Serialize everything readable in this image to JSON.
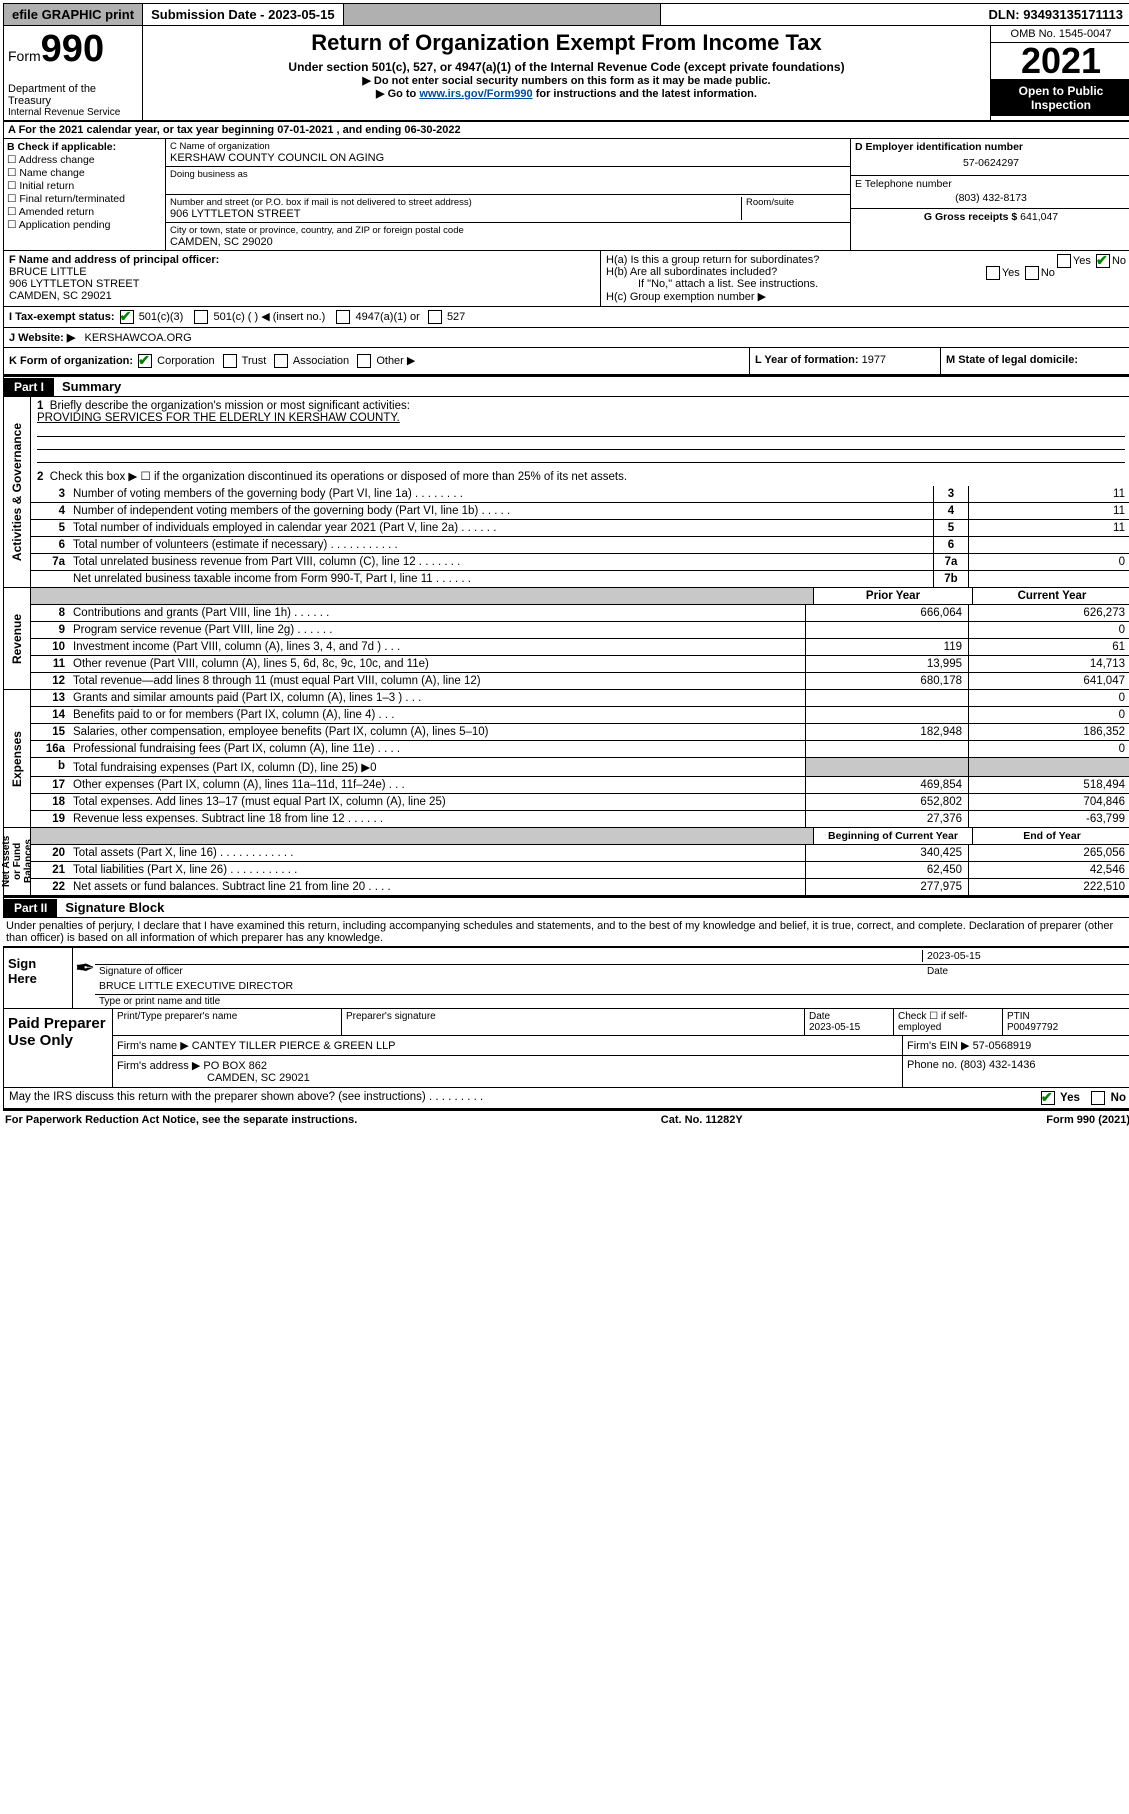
{
  "topbar": {
    "efile": "efile GRAPHIC print",
    "submission_label": "Submission Date - 2023-05-15",
    "dln_label": "DLN: 93493135171113"
  },
  "header": {
    "form_word": "Form",
    "form_num": "990",
    "dept": "Department of the Treasury",
    "irs": "Internal Revenue Service",
    "title": "Return of Organization Exempt From Income Tax",
    "sub1": "Under section 501(c), 527, or 4947(a)(1) of the Internal Revenue Code (except private foundations)",
    "sub2a": "▶ Do not enter social security numbers on this form as it may be made public.",
    "sub2b_pre": "▶ Go to ",
    "sub2b_link": "www.irs.gov/Form990",
    "sub2b_post": " for instructions and the latest information.",
    "omb": "OMB No. 1545-0047",
    "year": "2021",
    "open": "Open to Public Inspection"
  },
  "lineA": "A For the 2021 calendar year, or tax year beginning 07-01-2021     , and ending 06-30-2022",
  "B": {
    "label": "B Check if applicable:",
    "items": [
      "Address change",
      "Name change",
      "Initial return",
      "Final return/terminated",
      "Amended return",
      "Application pending"
    ]
  },
  "C": {
    "name_lab": "C Name of organization",
    "name": "KERSHAW COUNTY COUNCIL ON AGING",
    "dba_lab": "Doing business as",
    "addr_lab": "Number and street (or P.O. box if mail is not delivered to street address)",
    "room_lab": "Room/suite",
    "addr": "906 LYTTLETON STREET",
    "city_lab": "City or town, state or province, country, and ZIP or foreign postal code",
    "city": "CAMDEN, SC  29020"
  },
  "D": {
    "lab": "D Employer identification number",
    "val": "57-0624297"
  },
  "E": {
    "lab": "E Telephone number",
    "val": "(803) 432-8173"
  },
  "G": {
    "lab": "G Gross receipts $",
    "val": "641,047"
  },
  "F": {
    "lab": "F  Name and address of principal officer:",
    "name": "BRUCE LITTLE",
    "l1": "906 LYTTLETON STREET",
    "l2": "CAMDEN, SC  29021"
  },
  "H": {
    "a": "H(a)  Is this a group return for subordinates?",
    "b": "H(b)  Are all subordinates included?",
    "b2": "If \"No,\" attach a list. See instructions.",
    "c": "H(c)  Group exemption number ▶"
  },
  "I": {
    "lab": "I     Tax-exempt status:",
    "opts": [
      "501(c)(3)",
      "501(c) (   ) ◀ (insert no.)",
      "4947(a)(1) or",
      "527"
    ]
  },
  "J": {
    "lab": "J     Website: ▶",
    "val": "KERSHAWCOA.ORG"
  },
  "K": {
    "lab": "K Form of organization:",
    "opts": [
      "Corporation",
      "Trust",
      "Association",
      "Other ▶"
    ]
  },
  "L": {
    "lab": "L Year of formation:",
    "val": "1977"
  },
  "M": {
    "lab": "M State of legal domicile:"
  },
  "partI": {
    "tag": "Part I",
    "title": "Summary"
  },
  "summary": {
    "l1a": "Briefly describe the organization's mission or most significant activities:",
    "l1b": "PROVIDING SERVICES FOR THE ELDERLY IN KERSHAW COUNTY.",
    "l2": "Check this box ▶ ☐  if the organization discontinued its operations or disposed of more than 25% of its net assets.",
    "rows_gov": [
      {
        "n": "3",
        "d": "Number of voting members of the governing body (Part VI, line 1a)   .    .    .    .    .    .    .    .",
        "b": "3",
        "v": "11"
      },
      {
        "n": "4",
        "d": "Number of independent voting members of the governing body (Part VI, line 1b)   .    .    .    .    .",
        "b": "4",
        "v": "11"
      },
      {
        "n": "5",
        "d": "Total number of individuals employed in calendar year 2021 (Part V, line 2a)   .    .    .    .    .    .",
        "b": "5",
        "v": "11"
      },
      {
        "n": "6",
        "d": "Total number of volunteers (estimate if necessary)   .    .    .    .    .    .    .    .    .    .    .",
        "b": "6",
        "v": ""
      },
      {
        "n": "7a",
        "d": "Total unrelated business revenue from Part VIII, column (C), line 12   .    .    .    .    .    .    .",
        "b": "7a",
        "v": "0"
      },
      {
        "n": "",
        "d": "Net unrelated business taxable income from Form 990-T, Part I, line 11    .    .    .    .    .    .",
        "b": "7b",
        "v": ""
      }
    ],
    "col_hdr1": "Prior Year",
    "col_hdr2": "Current Year",
    "rows_rev": [
      {
        "n": "8",
        "d": "Contributions and grants (Part VIII, line 1h)   .    .    .    .    .    .",
        "p": "666,064",
        "c": "626,273"
      },
      {
        "n": "9",
        "d": "Program service revenue (Part VIII, line 2g)   .    .    .    .    .    .",
        "p": "",
        "c": "0"
      },
      {
        "n": "10",
        "d": "Investment income (Part VIII, column (A), lines 3, 4, and 7d )   .    .    .",
        "p": "119",
        "c": "61"
      },
      {
        "n": "11",
        "d": "Other revenue (Part VIII, column (A), lines 5, 6d, 8c, 9c, 10c, and 11e)",
        "p": "13,995",
        "c": "14,713"
      },
      {
        "n": "12",
        "d": "Total revenue—add lines 8 through 11 (must equal Part VIII, column (A), line 12)",
        "p": "680,178",
        "c": "641,047"
      }
    ],
    "rows_exp": [
      {
        "n": "13",
        "d": "Grants and similar amounts paid (Part IX, column (A), lines 1–3 )   .    .    .",
        "p": "",
        "c": "0"
      },
      {
        "n": "14",
        "d": "Benefits paid to or for members (Part IX, column (A), line 4)   .    .    .",
        "p": "",
        "c": "0"
      },
      {
        "n": "15",
        "d": "Salaries, other compensation, employee benefits (Part IX, column (A), lines 5–10)",
        "p": "182,948",
        "c": "186,352"
      },
      {
        "n": "16a",
        "d": "Professional fundraising fees (Part IX, column (A), line 11e)   .    .    .    .",
        "p": "",
        "c": "0"
      },
      {
        "n": "b",
        "d": "Total fundraising expenses (Part IX, column (D), line 25) ▶0",
        "p": "GREY",
        "c": "GREY"
      },
      {
        "n": "17",
        "d": "Other expenses (Part IX, column (A), lines 11a–11d, 11f–24e)   .    .    .",
        "p": "469,854",
        "c": "518,494"
      },
      {
        "n": "18",
        "d": "Total expenses. Add lines 13–17 (must equal Part IX, column (A), line 25)",
        "p": "652,802",
        "c": "704,846"
      },
      {
        "n": "19",
        "d": "Revenue less expenses. Subtract line 18 from line 12   .    .    .    .    .    .",
        "p": "27,376",
        "c": "-63,799"
      }
    ],
    "col_hdr3": "Beginning of Current Year",
    "col_hdr4": "End of Year",
    "rows_net": [
      {
        "n": "20",
        "d": "Total assets (Part X, line 16)   .    .    .    .    .    .    .    .    .    .    .    .",
        "p": "340,425",
        "c": "265,056"
      },
      {
        "n": "21",
        "d": "Total liabilities (Part X, line 26)   .    .    .    .    .    .    .    .    .    .    .",
        "p": "62,450",
        "c": "42,546"
      },
      {
        "n": "22",
        "d": "Net assets or fund balances. Subtract line 21 from line 20   .    .    .    .",
        "p": "277,975",
        "c": "222,510"
      }
    ],
    "side_labels": [
      "Activities & Governance",
      "Revenue",
      "Expenses",
      "Net Assets or Fund Balances"
    ]
  },
  "partII": {
    "tag": "Part II",
    "title": "Signature Block"
  },
  "penalty": "Under penalties of perjury, I declare that I have examined this return, including accompanying schedules and statements, and to the best of my knowledge and belief, it is true, correct, and complete. Declaration of preparer (other than officer) is based on all information of which preparer has any knowledge.",
  "sign": {
    "here": "Sign Here",
    "sig_lab": "Signature of officer",
    "date": "2023-05-15",
    "date_lab": "Date",
    "name": "BRUCE LITTLE  EXECUTIVE DIRECTOR",
    "name_lab": "Type or print name and title"
  },
  "paid": {
    "title": "Paid Preparer Use Only",
    "h1": "Print/Type preparer's name",
    "h2": "Preparer's signature",
    "h3": "Date",
    "h3v": "2023-05-15",
    "h4": "Check ☐ if self-employed",
    "h5": "PTIN",
    "h5v": "P00497792",
    "firm_lab": "Firm's name      ▶",
    "firm": "CANTEY TILLER PIERCE & GREEN LLP",
    "ein_lab": "Firm's EIN ▶",
    "ein": "57-0568919",
    "addr_lab": "Firm's address ▶",
    "addr1": "PO BOX 862",
    "addr2": "CAMDEN, SC  29021",
    "ph_lab": "Phone no.",
    "ph": "(803) 432-1436"
  },
  "may": "May the IRS discuss this return with the preparer shown above? (see instructions)   .    .    .    .    .    .    .    .    .",
  "footer": {
    "l": "For Paperwork Reduction Act Notice, see the separate instructions.",
    "m": "Cat. No. 11282Y",
    "r": "Form 990 (2021)"
  },
  "yes": "Yes",
  "no": "No"
}
